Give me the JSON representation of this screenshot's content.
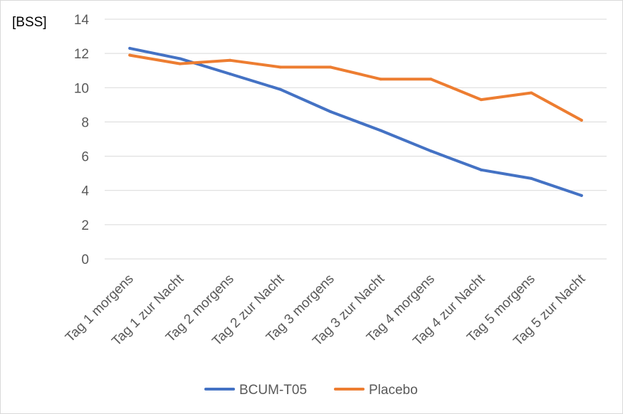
{
  "chart_data": {
    "type": "line",
    "unit_label": "[BSS]",
    "categories": [
      "Tag 1 morgens",
      "Tag 1 zur Nacht",
      "Tag 2 morgens",
      "Tag 2 zur Nacht",
      "Tag 3 morgens",
      "Tag 3 zur Nacht",
      "Tag 4 morgens",
      "Tag 4 zur Nacht",
      "Tag 5 morgens",
      "Tag 5 zur Nacht"
    ],
    "series": [
      {
        "name": "BCUM-T05",
        "color": "#4472c4",
        "values": [
          12.3,
          11.7,
          10.8,
          9.9,
          8.6,
          7.5,
          6.3,
          5.2,
          4.7,
          3.7
        ]
      },
      {
        "name": "Placebo",
        "color": "#ed7d31",
        "values": [
          11.9,
          11.4,
          11.6,
          11.2,
          11.2,
          10.5,
          10.5,
          9.3,
          9.7,
          8.1
        ]
      }
    ],
    "ylim": [
      0,
      14
    ],
    "yticks": [
      0,
      2,
      4,
      6,
      8,
      10,
      12,
      14
    ],
    "grid": true,
    "legend_position": "bottom"
  }
}
